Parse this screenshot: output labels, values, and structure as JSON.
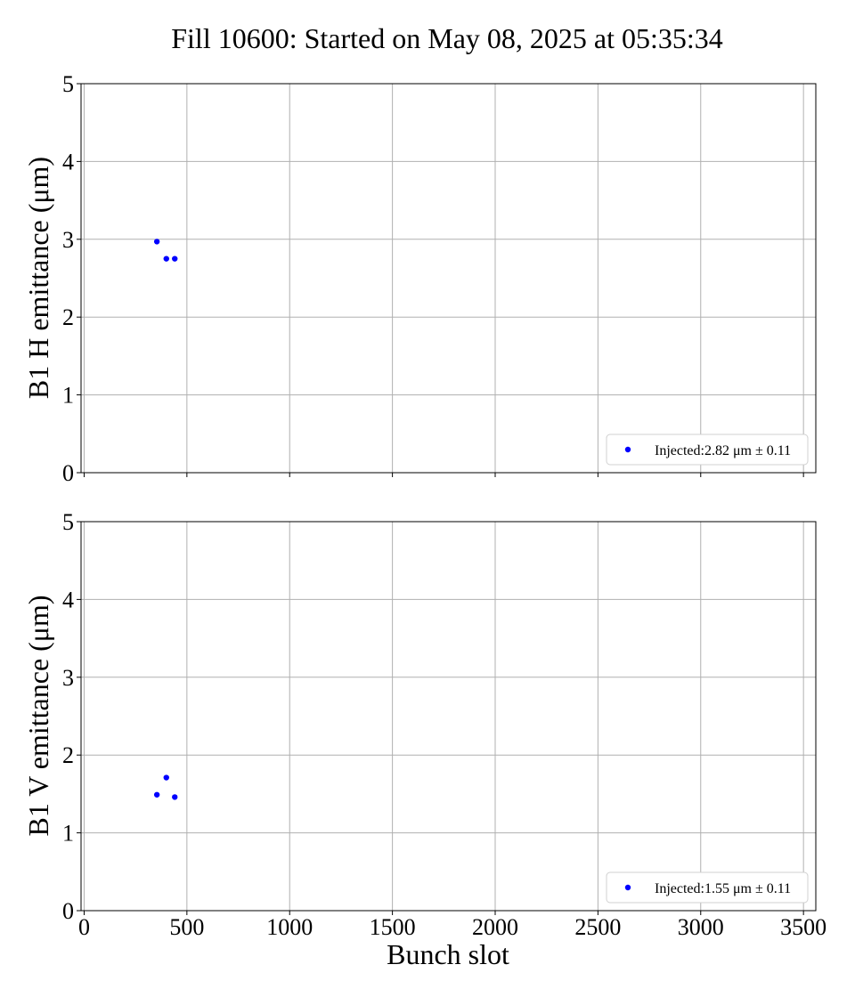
{
  "chart_data": {
    "type": "scatter",
    "title": "Fill 10600: Started on May 08, 2025 at 05:35:34",
    "xlabel": "Bunch slot",
    "xlim": [
      -15,
      3560
    ],
    "x_ticks": [
      "0",
      "500",
      "1000",
      "1500",
      "2000",
      "2500",
      "3000",
      "3500"
    ],
    "x_tick_values": [
      0,
      500,
      1000,
      1500,
      2000,
      2500,
      3000,
      3500
    ],
    "grid": true,
    "point_color": "#0000ff",
    "panels": [
      {
        "ylabel": "B1 H emittance (μm)",
        "ylim": [
          0,
          5
        ],
        "y_ticks": [
          "0",
          "1",
          "2",
          "3",
          "4",
          "5"
        ],
        "y_tick_values": [
          0,
          1,
          2,
          3,
          4,
          5
        ],
        "show_x_tick_labels": false,
        "series": [
          {
            "name": "Injected:2.82 μm ± 0.11",
            "points": [
              {
                "x": 354,
                "y": 2.97
              },
              {
                "x": 400,
                "y": 2.75
              },
              {
                "x": 441,
                "y": 2.75
              }
            ]
          }
        ],
        "legend_position": "lower-right"
      },
      {
        "ylabel": "B1 V emittance (μm)",
        "ylim": [
          0,
          5
        ],
        "y_ticks": [
          "0",
          "1",
          "2",
          "3",
          "4",
          "5"
        ],
        "y_tick_values": [
          0,
          1,
          2,
          3,
          4,
          5
        ],
        "show_x_tick_labels": true,
        "series": [
          {
            "name": "Injected:1.55 μm ± 0.11",
            "points": [
              {
                "x": 354,
                "y": 1.49
              },
              {
                "x": 400,
                "y": 1.71
              },
              {
                "x": 441,
                "y": 1.46
              }
            ]
          }
        ],
        "legend_position": "lower-right"
      }
    ]
  }
}
